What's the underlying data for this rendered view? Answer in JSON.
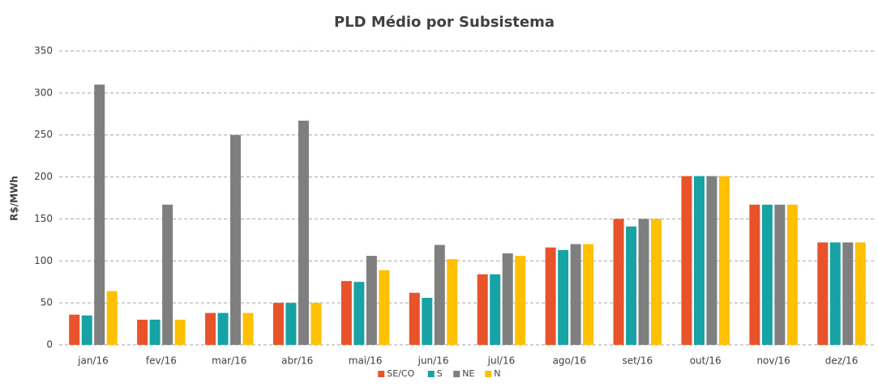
{
  "chart_data": {
    "type": "bar",
    "title": "PLD Médio por Subsistema",
    "y_label": "R$/MWh",
    "categories": [
      "jan/16",
      "fev/16",
      "mar/16",
      "abr/16",
      "mai/16",
      "jun/16",
      "jul/16",
      "ago/16",
      "set/16",
      "out/16",
      "nov/16",
      "dez/16"
    ],
    "series": [
      {
        "name": "SE/CO",
        "color": "#e8532b",
        "values": [
          36,
          30,
          38,
          50,
          76,
          62,
          84,
          116,
          150,
          201,
          167,
          122
        ]
      },
      {
        "name": "S",
        "color": "#17a2a5",
        "values": [
          35,
          30,
          38,
          50,
          75,
          56,
          84,
          113,
          141,
          201,
          167,
          122
        ]
      },
      {
        "name": "NE",
        "color": "#7f7f7f",
        "values": [
          310,
          167,
          250,
          267,
          106,
          119,
          109,
          120,
          150,
          201,
          167,
          122
        ]
      },
      {
        "name": "N",
        "color": "#ffc000",
        "values": [
          64,
          30,
          38,
          50,
          89,
          102,
          106,
          120,
          150,
          201,
          167,
          122
        ]
      }
    ],
    "ylim": [
      0,
      350
    ],
    "yticks": [
      0,
      50,
      100,
      150,
      200,
      250,
      300,
      350
    ],
    "grid": true,
    "legend": "bottom"
  }
}
